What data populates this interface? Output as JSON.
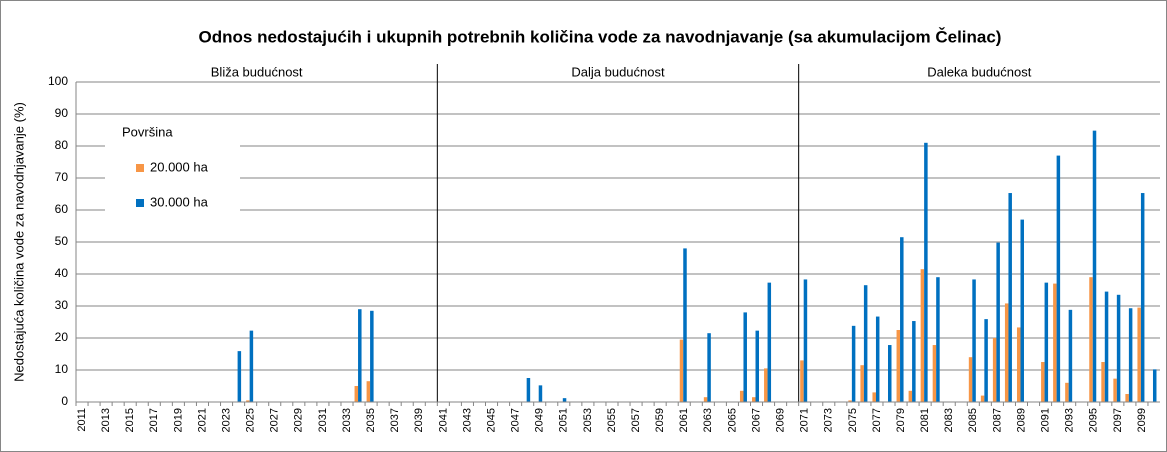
{
  "chart_data": {
    "type": "bar",
    "title": "Odnos nedostajućih i ukupnih potrebnih količina vode za navodnjavanje (sa akumulacijom Čelinac)",
    "y_label": "Nedostajuća količina vode za navodnjavanje (%)",
    "periods": [
      "Bliža budućnost",
      "Dalja budućnost",
      "Daleka budućnost"
    ],
    "legend_title": "Površina",
    "legend": "upper left",
    "grid": true,
    "categories": [
      "2011",
      null,
      "2013",
      null,
      "2015",
      null,
      "2017",
      null,
      "2019",
      null,
      "2021",
      null,
      "2023",
      null,
      "2025",
      null,
      "2027",
      null,
      "2029",
      null,
      "2031",
      null,
      "2033",
      null,
      "2035",
      null,
      "2037",
      null,
      "2039",
      null,
      "2041",
      null,
      "2043",
      null,
      "2045",
      null,
      "2047",
      null,
      "2049",
      null,
      "2051",
      null,
      "2053",
      null,
      "2055",
      null,
      "2057",
      null,
      "2059",
      null,
      "2061",
      null,
      "2063",
      null,
      "2065",
      null,
      "2067",
      null,
      "2069",
      null,
      "2071",
      null,
      "2073",
      null,
      "2075",
      null,
      "2077",
      null,
      "2079",
      null,
      "2081",
      null,
      "2083",
      null,
      "2085",
      null,
      "2087",
      null,
      "2089",
      null,
      "2091",
      null,
      "2093",
      null,
      "2095",
      null,
      "2097",
      null,
      "2099",
      null
    ],
    "series": [
      {
        "name": "20.000 ha",
        "color": "#f79646",
        "values": [
          0,
          0,
          0,
          0,
          0,
          0,
          0,
          0,
          0,
          0,
          0,
          0,
          0,
          0,
          0.5,
          0,
          0,
          0,
          0,
          0,
          0,
          0,
          0,
          5,
          6.5,
          0,
          0,
          0,
          0,
          0,
          0,
          0,
          0,
          0,
          0,
          0,
          0,
          0,
          0,
          0,
          0,
          0,
          0,
          0,
          0,
          0,
          0,
          0,
          0,
          0,
          19.5,
          0,
          1.5,
          0,
          0,
          3.5,
          1.5,
          10.5,
          0,
          0,
          13,
          0,
          0,
          0,
          0.5,
          11.5,
          3,
          0,
          22.5,
          3.5,
          41.5,
          17.8,
          0,
          0,
          14,
          2,
          20,
          30.8,
          23.3,
          0,
          12.5,
          37,
          6,
          0,
          39,
          12.5,
          7.3,
          2.5,
          29.5,
          0
        ]
      },
      {
        "name": "30.000 ha",
        "color": "#0070c0",
        "values": [
          0,
          0,
          0,
          0,
          0,
          0,
          0,
          0,
          0,
          0,
          0,
          0,
          0,
          15.9,
          22.3,
          0,
          0,
          0,
          0,
          0,
          0,
          0,
          0,
          29,
          28.5,
          0,
          0,
          0,
          0,
          0,
          0,
          0,
          0,
          0,
          0,
          0,
          0,
          7.5,
          5.2,
          0,
          1.2,
          0,
          0,
          0,
          0,
          0,
          0,
          0,
          0,
          0,
          48,
          0,
          21.5,
          0,
          0,
          28,
          22.3,
          37.3,
          0,
          0,
          38.3,
          0,
          0,
          0,
          23.8,
          36.5,
          26.7,
          17.8,
          51.5,
          25.3,
          81,
          39,
          0,
          0,
          38.3,
          25.9,
          49.8,
          65.3,
          57,
          0,
          37.3,
          77,
          28.8,
          0,
          84.8,
          34.5,
          33.5,
          29.3,
          65.3,
          10.2
        ]
      }
    ],
    "ylim": [
      0,
      100
    ],
    "yticks": [
      0,
      10,
      20,
      30,
      40,
      50,
      60,
      70,
      80,
      90,
      100
    ]
  }
}
